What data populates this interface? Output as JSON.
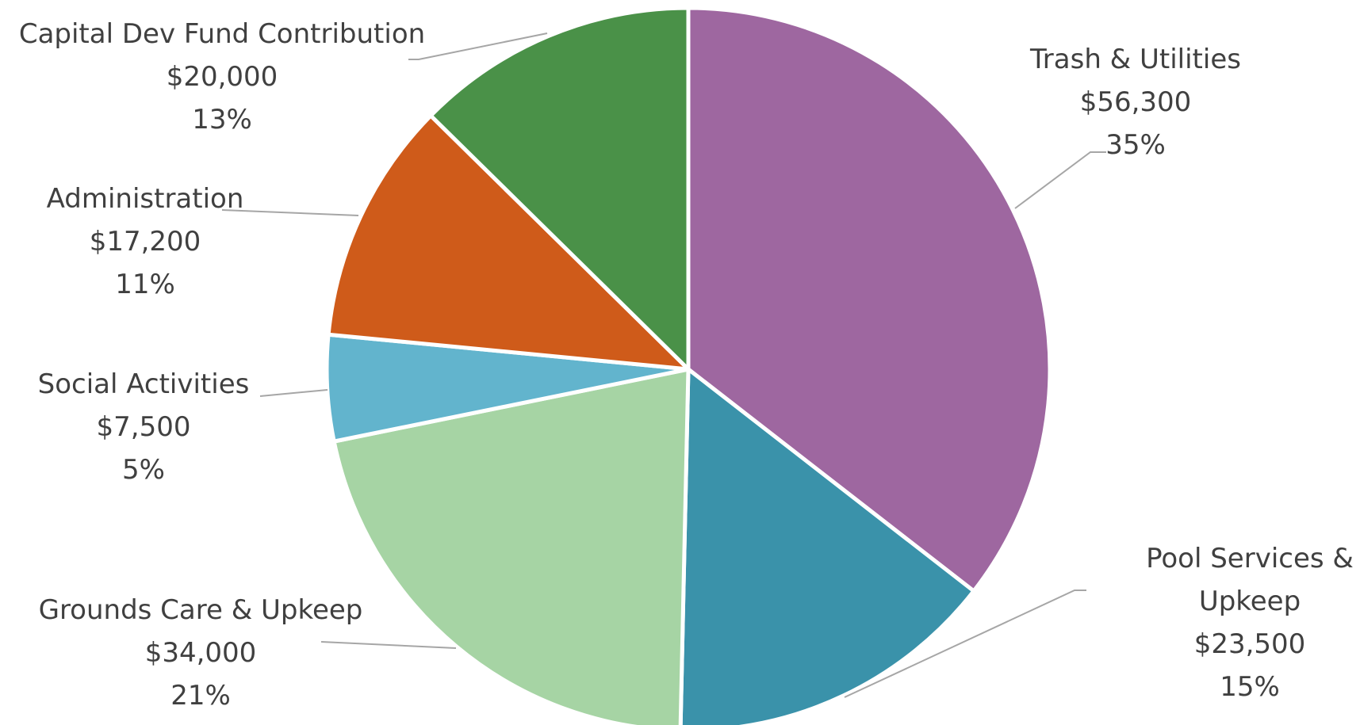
{
  "chart_data": {
    "type": "pie",
    "title": "",
    "legend": "none",
    "slices": [
      {
        "label": "Trash & Utilities",
        "value": 56300,
        "value_label": "$56,300",
        "percent_label": "35%",
        "color": "#9e67a0"
      },
      {
        "label": "Pool Services & Upkeep",
        "label_lines": [
          "Pool Services &",
          "Upkeep"
        ],
        "value": 23500,
        "value_label": "$23,500",
        "percent_label": "15%",
        "color": "#3a92aa"
      },
      {
        "label": "Grounds Care & Upkeep",
        "value": 34000,
        "value_label": "$34,000",
        "percent_label": "21%",
        "color": "#a6d4a4"
      },
      {
        "label": "Social Activities",
        "value": 7500,
        "value_label": "$7,500",
        "percent_label": "5%",
        "color": "#62b4cd"
      },
      {
        "label": "Administration",
        "value": 17200,
        "value_label": "$17,200",
        "percent_label": "11%",
        "color": "#cf5b1a"
      },
      {
        "label": "Capital Dev Fund Contribution",
        "value": 20000,
        "value_label": "$20,000",
        "percent_label": "13%",
        "color": "#4a9148"
      }
    ]
  }
}
